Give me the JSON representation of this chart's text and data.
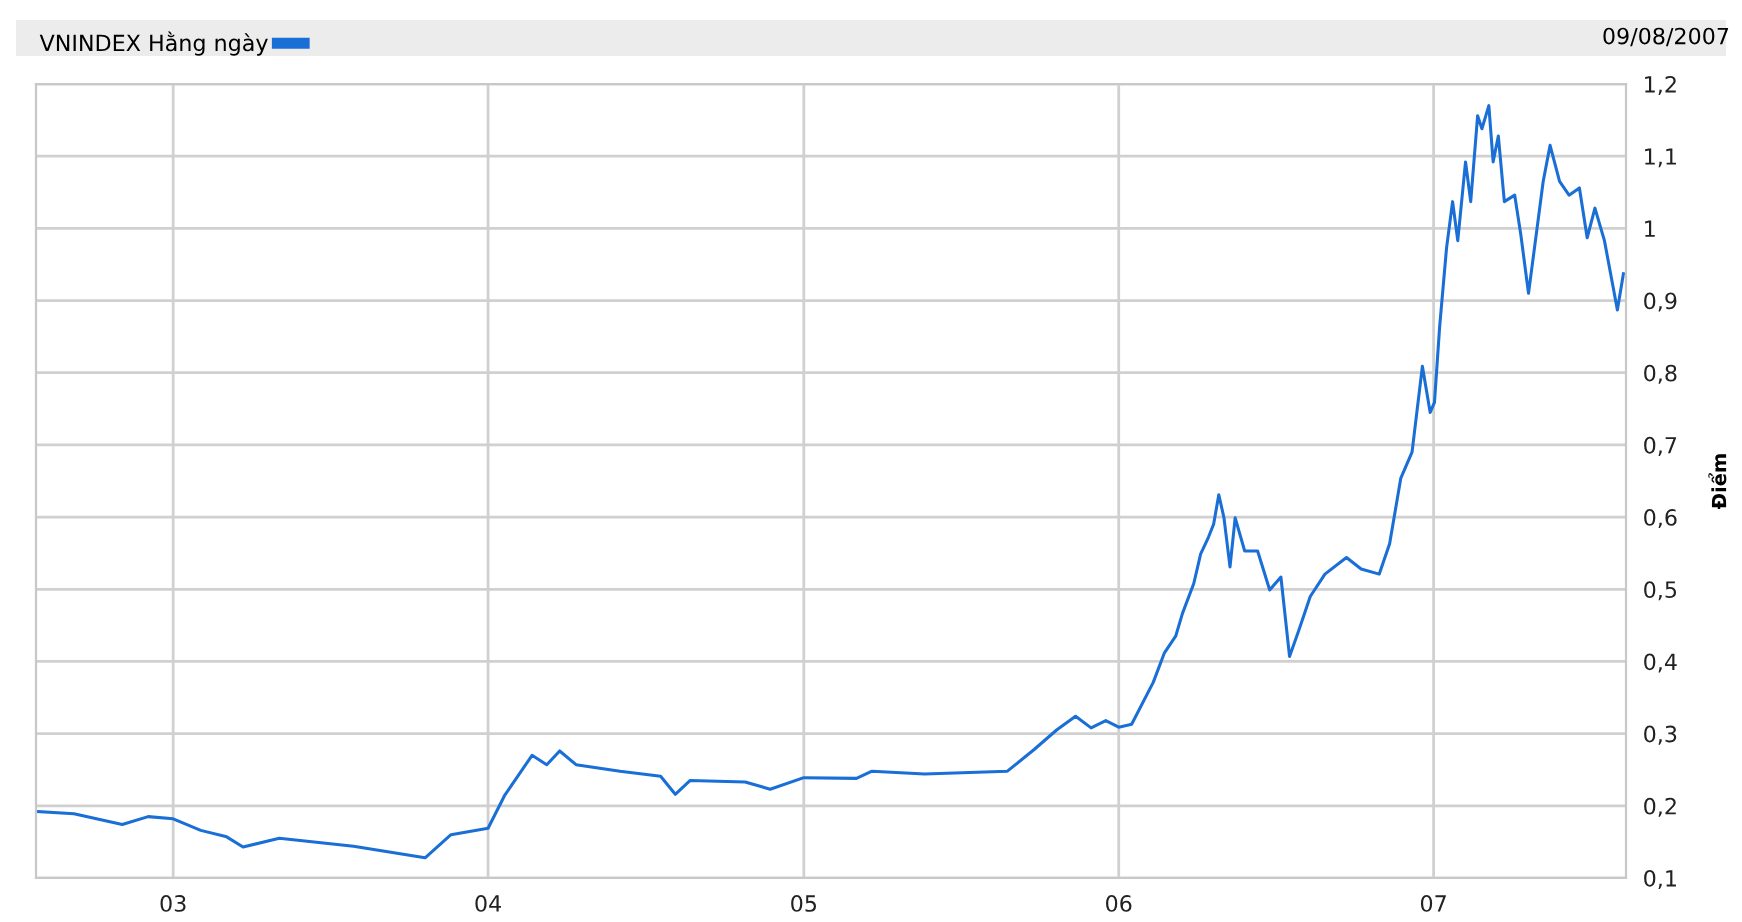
{
  "chart_data": {
    "type": "line",
    "subtitle": "09/08/2007",
    "ylabel": "Điểm",
    "series": [
      {
        "name": "VNINDEX Hằng ngày",
        "color": "#1a6fd6",
        "x": [
          "2002-07-28",
          "2002-09-08",
          "2002-11-03",
          "2002-12-03",
          "2003-01-01",
          "2003-02-02",
          "2003-03-04",
          "2003-03-23",
          "2003-05-04",
          "2003-07-29",
          "2003-10-20",
          "2003-11-19",
          "2004-01-01",
          "2004-01-20",
          "2004-02-21",
          "2004-03-09",
          "2004-03-24",
          "2004-04-12",
          "2004-06-02",
          "2004-07-19",
          "2004-08-05",
          "2004-08-22",
          "2004-10-25",
          "2004-11-23",
          "2005-01-01",
          "2005-03-03",
          "2005-03-21",
          "2005-05-21",
          "2005-08-25",
          "2005-09-25",
          "2005-10-21",
          "2005-11-12",
          "2005-11-30",
          "2005-12-17",
          "2006-01-01",
          "2006-01-16",
          "2006-02-10",
          "2006-02-23",
          "2006-03-08",
          "2006-03-16",
          "2006-03-29",
          "2006-04-06",
          "2006-04-15",
          "2006-04-21",
          "2006-04-27",
          "2006-05-03",
          "2006-05-10",
          "2006-05-16",
          "2006-05-27",
          "2006-06-11",
          "2006-06-25",
          "2006-07-08",
          "2006-07-18",
          "2006-07-29",
          "2006-08-11",
          "2006-08-28",
          "2006-09-22",
          "2006-10-09",
          "2006-10-30",
          "2006-11-11",
          "2006-11-24",
          "2006-12-07",
          "2006-12-19",
          "2006-12-28",
          "2007-01-02",
          "2007-01-08",
          "2007-01-16",
          "2007-01-23",
          "2007-01-29",
          "2007-02-07",
          "2007-02-13",
          "2007-02-21",
          "2007-02-26",
          "2007-03-06",
          "2007-03-11",
          "2007-03-17",
          "2007-03-24",
          "2007-04-05",
          "2007-04-12",
          "2007-04-21",
          "2007-05-01",
          "2007-05-08",
          "2007-05-16",
          "2007-05-27",
          "2007-06-07",
          "2007-06-19",
          "2007-06-28",
          "2007-07-07",
          "2007-07-18",
          "2007-07-28",
          "2007-08-02",
          "2007-08-09"
        ],
        "values": [
          0.192,
          0.189,
          0.174,
          0.185,
          0.182,
          0.166,
          0.157,
          0.143,
          0.155,
          0.144,
          0.128,
          0.16,
          0.169,
          0.214,
          0.27,
          0.257,
          0.276,
          0.257,
          0.248,
          0.241,
          0.216,
          0.235,
          0.233,
          0.223,
          0.239,
          0.238,
          0.248,
          0.244,
          0.248,
          0.278,
          0.305,
          0.324,
          0.308,
          0.318,
          0.309,
          0.313,
          0.371,
          0.412,
          0.435,
          0.467,
          0.508,
          0.549,
          0.572,
          0.59,
          0.631,
          0.599,
          0.531,
          0.599,
          0.553,
          0.553,
          0.499,
          0.517,
          0.407,
          0.444,
          0.49,
          0.521,
          0.544,
          0.528,
          0.521,
          0.563,
          0.654,
          0.69,
          0.809,
          0.745,
          0.759,
          0.864,
          0.973,
          1.037,
          0.983,
          1.092,
          1.037,
          1.156,
          1.138,
          1.17,
          1.092,
          1.128,
          1.037,
          1.046,
          0.992,
          0.91,
          1.001,
          1.065,
          1.115,
          1.065,
          1.046,
          1.056,
          0.987,
          1.028,
          0.983,
          0.919,
          0.887,
          0.937
        ]
      }
    ],
    "xlim": [
      "2002-07-26",
      "2007-08-12"
    ],
    "xticks": [
      {
        "value": "2003-01-01",
        "label": "03"
      },
      {
        "value": "2004-01-01",
        "label": "04"
      },
      {
        "value": "2005-01-01",
        "label": "05"
      },
      {
        "value": "2006-01-01",
        "label": "06"
      },
      {
        "value": "2007-01-01",
        "label": "07"
      }
    ],
    "ylim": [
      0.1,
      1.2
    ],
    "yticks": [
      {
        "value": 0.1,
        "label": "0,1"
      },
      {
        "value": 0.2,
        "label": "0,2"
      },
      {
        "value": 0.3,
        "label": "0,3"
      },
      {
        "value": 0.4,
        "label": "0,4"
      },
      {
        "value": 0.5,
        "label": "0,5"
      },
      {
        "value": 0.6,
        "label": "0,6"
      },
      {
        "value": 0.7,
        "label": "0,7"
      },
      {
        "value": 0.8,
        "label": "0,8"
      },
      {
        "value": 0.9,
        "label": "0,9"
      },
      1,
      {
        "value": 1.1,
        "label": "1,1"
      },
      {
        "value": 1.2,
        "label": "1,2"
      }
    ],
    "grid": true,
    "legend": "top left",
    "marker": "none",
    "line_style": "solid"
  }
}
